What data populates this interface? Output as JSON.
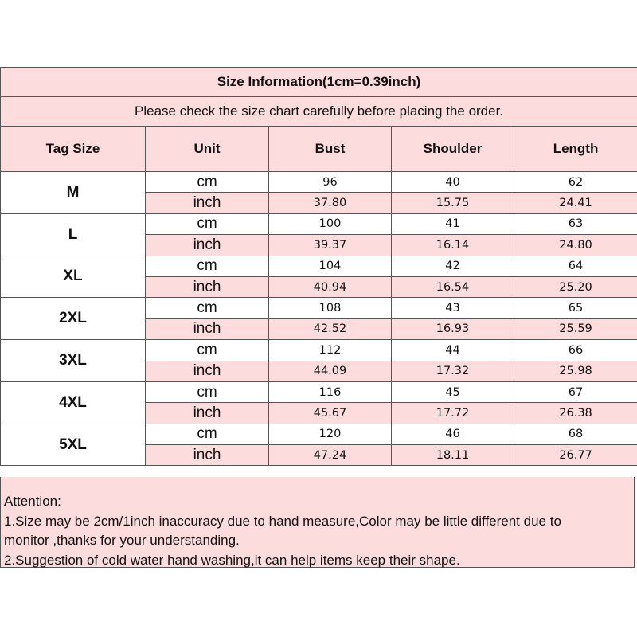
{
  "title": "Size Information(1cm=0.39inch)",
  "subtitle": "Please check the size chart carefully before placing the order.",
  "headers": [
    "Tag Size",
    "Unit",
    "Bust",
    "Shoulder",
    "Length"
  ],
  "units": {
    "cm": "cm",
    "inch": "inch"
  },
  "rows": [
    {
      "size": "M",
      "cm": [
        "96",
        "40",
        "62"
      ],
      "inch": [
        "37.80",
        "15.75",
        "24.41"
      ]
    },
    {
      "size": "L",
      "cm": [
        "100",
        "41",
        "63"
      ],
      "inch": [
        "39.37",
        "16.14",
        "24.80"
      ]
    },
    {
      "size": "XL",
      "cm": [
        "104",
        "42",
        "64"
      ],
      "inch": [
        "40.94",
        "16.54",
        "25.20"
      ]
    },
    {
      "size": "2XL",
      "cm": [
        "108",
        "43",
        "65"
      ],
      "inch": [
        "42.52",
        "16.93",
        "25.59"
      ]
    },
    {
      "size": "3XL",
      "cm": [
        "112",
        "44",
        "66"
      ],
      "inch": [
        "44.09",
        "17.32",
        "25.98"
      ]
    },
    {
      "size": "4XL",
      "cm": [
        "116",
        "45",
        "67"
      ],
      "inch": [
        "45.67",
        "17.72",
        "26.38"
      ]
    },
    {
      "size": "5XL",
      "cm": [
        "120",
        "46",
        "68"
      ],
      "inch": [
        "47.24",
        "18.11",
        "26.77"
      ]
    }
  ],
  "attention": {
    "heading": "Attention:",
    "lines": [
      "1.Size may be 2cm/1inch inaccuracy due to hand measure,Color may be little different due to",
      "monitor ,thanks for your understanding.",
      "2.Suggestion of cold water hand washing,it can help items keep their shape."
    ]
  },
  "colors": {
    "header_bg": "#fcdcdc",
    "border": "#555555"
  }
}
